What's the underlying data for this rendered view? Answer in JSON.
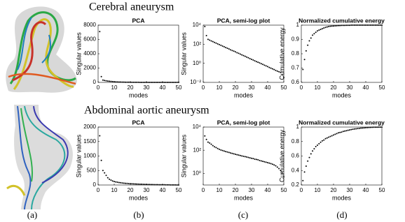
{
  "row_titles": [
    "Cerebral aneurysm",
    "Abdominal aortic aneurysm"
  ],
  "panel_labels": [
    "(a)",
    "(b)",
    "(c)",
    "(d)"
  ],
  "chart_data": [
    {
      "type": "scatter",
      "title": "PCA",
      "xlabel": "modes",
      "ylabel": "Singular values",
      "color": "#000000",
      "yscale": "linear",
      "xlim": [
        0,
        50
      ],
      "xticks": [
        0,
        10,
        20,
        30,
        40,
        50
      ],
      "ylim": [
        0,
        8000
      ],
      "yticks": [
        0,
        2000,
        4000,
        6000,
        8000
      ],
      "x": [
        1,
        2,
        3,
        4,
        5,
        6,
        7,
        8,
        9,
        10,
        11,
        12,
        13,
        14,
        15,
        16,
        17,
        18,
        19,
        20,
        21,
        22,
        23,
        24,
        25,
        26,
        27,
        28,
        29,
        30,
        31,
        32,
        33,
        34,
        35,
        36,
        37,
        38,
        39,
        40,
        41,
        42,
        43,
        44,
        45,
        46,
        47,
        48,
        49,
        50
      ],
      "values": [
        7100,
        800,
        320,
        265,
        222,
        186,
        156,
        130,
        109,
        91,
        77,
        64,
        54,
        45,
        38,
        32,
        26,
        22,
        19,
        16,
        13,
        11,
        9.1,
        7.6,
        6.4,
        5.4,
        4.5,
        3.8,
        3.1,
        2.6,
        2.2,
        1.8,
        1.5,
        1.3,
        1.1,
        0.91,
        0.76,
        0.64,
        0.53,
        0.45,
        0.37,
        0.31,
        0.26,
        0.22,
        0.18,
        0.15,
        0.13,
        0.11,
        0.063,
        0.032
      ]
    },
    {
      "type": "scatter",
      "title": "PCA, semi-log plot",
      "xlabel": "modes",
      "ylabel": "Singular values",
      "color": "#000000",
      "yscale": "log",
      "xlim": [
        0,
        50
      ],
      "xticks": [
        0,
        10,
        20,
        30,
        40,
        50
      ],
      "ylim": [
        0.01,
        10000
      ],
      "yticks": [
        {
          "value": 0.01,
          "label": "10⁻²"
        },
        {
          "value": 1,
          "label": "10⁰"
        },
        {
          "value": 100,
          "label": "10²"
        },
        {
          "value": 10000,
          "label": "10⁴"
        }
      ],
      "x": [
        1,
        2,
        3,
        4,
        5,
        6,
        7,
        8,
        9,
        10,
        11,
        12,
        13,
        14,
        15,
        16,
        17,
        18,
        19,
        20,
        21,
        22,
        23,
        24,
        25,
        26,
        27,
        28,
        29,
        30,
        31,
        32,
        33,
        34,
        35,
        36,
        37,
        38,
        39,
        40,
        41,
        42,
        43,
        44,
        45,
        46,
        47,
        48,
        49,
        50
      ],
      "values": [
        7100,
        800,
        320,
        265,
        222,
        186,
        156,
        130,
        109,
        91,
        77,
        64,
        54,
        45,
        38,
        32,
        26,
        22,
        19,
        16,
        13,
        11,
        9.1,
        7.6,
        6.4,
        5.4,
        4.5,
        3.8,
        3.1,
        2.6,
        2.2,
        1.8,
        1.5,
        1.3,
        1.1,
        0.91,
        0.76,
        0.64,
        0.53,
        0.45,
        0.37,
        0.31,
        0.26,
        0.22,
        0.18,
        0.15,
        0.13,
        0.11,
        0.063,
        0.032
      ]
    },
    {
      "type": "scatter",
      "title": "Normalized cumulative energy",
      "xlabel": "modes",
      "ylabel": "Cumulative energy",
      "color": "#000000",
      "yscale": "linear",
      "xlim": [
        0,
        50
      ],
      "xticks": [
        0,
        10,
        20,
        30,
        40,
        50
      ],
      "ylim": [
        0.6,
        1
      ],
      "yticks": [
        0.6,
        0.7,
        0.8,
        0.9,
        1
      ],
      "x": [
        1,
        2,
        3,
        4,
        5,
        6,
        7,
        8,
        9,
        10,
        11,
        12,
        13,
        14,
        15,
        16,
        17,
        18,
        19,
        20,
        21,
        22,
        23,
        24,
        25,
        26,
        27,
        28,
        29,
        30,
        31,
        32,
        33,
        34,
        35,
        36,
        37,
        38,
        39,
        40,
        41,
        42,
        43,
        44,
        45,
        46,
        47,
        48,
        49,
        50
      ],
      "values": [
        0.69,
        0.76,
        0.82,
        0.86,
        0.89,
        0.91,
        0.93,
        0.94,
        0.95,
        0.96,
        0.965,
        0.97,
        0.975,
        0.98,
        0.984,
        0.987,
        0.99,
        0.992,
        0.993,
        0.994,
        0.995,
        0.996,
        0.997,
        0.997,
        0.998,
        0.998,
        0.998,
        0.999,
        0.999,
        0.999,
        1,
        1,
        1,
        1,
        1,
        1,
        1,
        1,
        1,
        1,
        1,
        1,
        1,
        1,
        1,
        1,
        1,
        1,
        1,
        1
      ]
    },
    {
      "type": "scatter",
      "title": "PCA",
      "xlabel": "modes",
      "ylabel": "Singular values",
      "color": "#000000",
      "yscale": "linear",
      "xlim": [
        0,
        50
      ],
      "xticks": [
        0,
        10,
        20,
        30,
        40,
        50
      ],
      "ylim": [
        0,
        2000
      ],
      "yticks": [
        0,
        500,
        1000,
        1500,
        2000
      ],
      "x": [
        1,
        2,
        3,
        4,
        5,
        6,
        7,
        8,
        9,
        10,
        11,
        12,
        13,
        14,
        15,
        16,
        17,
        18,
        19,
        20,
        21,
        22,
        23,
        24,
        25,
        26,
        27,
        28,
        29,
        30,
        31,
        32,
        33,
        34,
        35,
        36,
        37,
        38,
        39,
        40,
        41,
        42,
        43,
        44,
        45,
        46,
        47,
        48,
        49,
        50
      ],
      "values": [
        1700,
        850,
        500,
        420,
        330,
        250,
        200,
        170,
        140,
        120,
        105,
        95,
        85,
        77,
        70,
        64,
        58,
        53,
        49,
        45,
        41,
        38,
        35,
        32,
        30,
        28,
        26,
        24,
        22,
        20,
        19,
        17,
        16,
        15,
        13,
        12,
        11,
        10,
        9.3,
        8.5,
        7.7,
        7.0,
        6.2,
        5.4,
        4.5,
        3.5,
        2.6,
        1.8,
        1.1,
        0.5
      ]
    },
    {
      "type": "scatter",
      "title": "PCA, semi-log plot",
      "xlabel": "modes",
      "ylabel": "Singular values",
      "color": "#000000",
      "yscale": "log",
      "xlim": [
        0,
        50
      ],
      "xticks": [
        0,
        10,
        20,
        30,
        40,
        50
      ],
      "ylim": [
        0.1,
        10000
      ],
      "yticks": [
        {
          "value": 1,
          "label": "10⁰"
        },
        {
          "value": 100,
          "label": "10²"
        },
        {
          "value": 10000,
          "label": "10⁴"
        }
      ],
      "x": [
        1,
        2,
        3,
        4,
        5,
        6,
        7,
        8,
        9,
        10,
        11,
        12,
        13,
        14,
        15,
        16,
        17,
        18,
        19,
        20,
        21,
        22,
        23,
        24,
        25,
        26,
        27,
        28,
        29,
        30,
        31,
        32,
        33,
        34,
        35,
        36,
        37,
        38,
        39,
        40,
        41,
        42,
        43,
        44,
        45,
        46,
        47,
        48,
        49,
        50
      ],
      "values": [
        1700,
        850,
        500,
        420,
        330,
        250,
        200,
        170,
        140,
        120,
        105,
        95,
        85,
        77,
        70,
        64,
        58,
        53,
        49,
        45,
        41,
        38,
        35,
        32,
        30,
        28,
        26,
        24,
        22,
        20,
        19,
        17,
        16,
        15,
        13,
        12,
        11,
        10,
        9.3,
        8.5,
        7.7,
        7.0,
        6.2,
        5.4,
        4.5,
        3.5,
        2.6,
        1.8,
        1.1,
        0.5
      ]
    },
    {
      "type": "scatter",
      "title": "Normalized cumulative energy",
      "xlabel": "modes",
      "ylabel": "Cumulative energy",
      "color": "#000000",
      "yscale": "linear",
      "xlim": [
        0,
        50
      ],
      "xticks": [
        0,
        10,
        20,
        30,
        40,
        50
      ],
      "ylim": [
        0.2,
        1
      ],
      "yticks": [
        0.2,
        0.4,
        0.6,
        0.8,
        1
      ],
      "x": [
        1,
        2,
        3,
        4,
        5,
        6,
        7,
        8,
        9,
        10,
        11,
        12,
        13,
        14,
        15,
        16,
        17,
        18,
        19,
        20,
        21,
        22,
        23,
        24,
        25,
        26,
        27,
        28,
        29,
        30,
        31,
        32,
        33,
        34,
        35,
        36,
        37,
        38,
        39,
        40,
        41,
        42,
        43,
        44,
        45,
        46,
        47,
        48,
        49,
        50
      ],
      "values": [
        0.26,
        0.38,
        0.46,
        0.53,
        0.58,
        0.63,
        0.67,
        0.7,
        0.73,
        0.75,
        0.77,
        0.79,
        0.81,
        0.82,
        0.84,
        0.85,
        0.86,
        0.87,
        0.88,
        0.89,
        0.9,
        0.91,
        0.92,
        0.925,
        0.93,
        0.94,
        0.945,
        0.95,
        0.955,
        0.96,
        0.965,
        0.97,
        0.973,
        0.976,
        0.979,
        0.982,
        0.985,
        0.987,
        0.989,
        0.991,
        0.993,
        0.994,
        0.995,
        0.996,
        0.997,
        0.998,
        0.998,
        0.999,
        0.999,
        1
      ]
    }
  ]
}
